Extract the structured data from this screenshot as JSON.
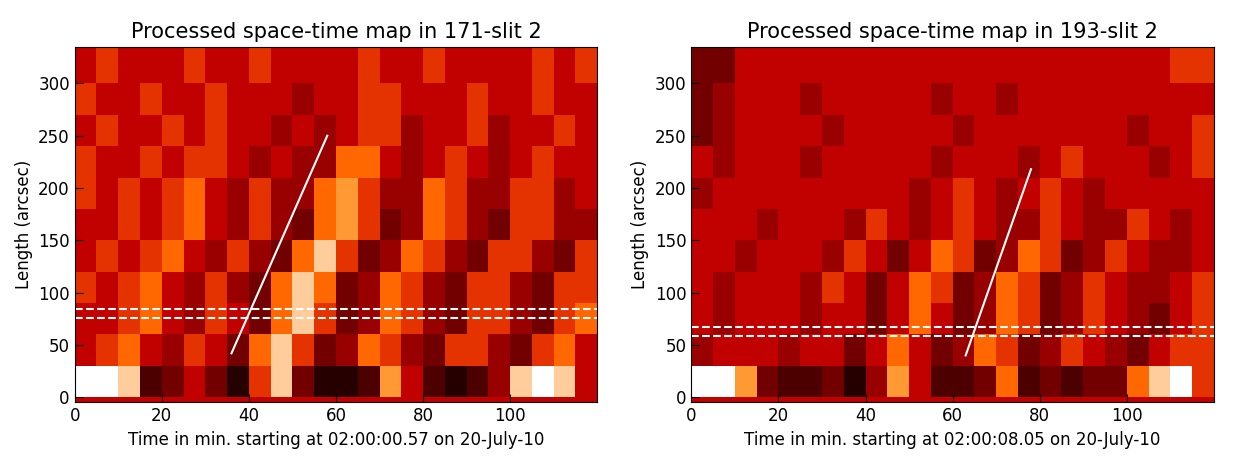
{
  "chart_data": [
    {
      "type": "heatmap",
      "title": "Processed space-time map in 171-slit 2",
      "x_label": "Time in min. starting at 02:00:00.57 on 20-July-10",
      "y_label": "Length (arcsec)",
      "xlim": [
        0,
        120
      ],
      "ylim": [
        -5,
        335
      ],
      "xticks": [
        0,
        20,
        40,
        60,
        80,
        100
      ],
      "yticks": [
        0,
        50,
        100,
        150,
        200,
        250,
        300
      ],
      "zlim": [
        0,
        10
      ],
      "x_edges": [
        0,
        5,
        10,
        15,
        20,
        25,
        30,
        35,
        40,
        45,
        50,
        55,
        60,
        65,
        70,
        75,
        80,
        85,
        90,
        95,
        100,
        105,
        110,
        115,
        120
      ],
      "y_edges": [
        0,
        30,
        60,
        90,
        120,
        150,
        180,
        210,
        240,
        270,
        300,
        335
      ],
      "cells": [
        [
          10,
          10,
          9,
          2,
          3,
          5,
          3,
          1,
          6,
          9,
          3,
          1,
          1,
          2,
          8,
          5,
          2,
          1,
          2,
          4,
          9,
          10,
          9,
          5
        ],
        [
          5,
          6,
          7,
          5,
          4,
          6,
          5,
          3,
          7,
          9,
          6,
          3,
          4,
          7,
          6,
          4,
          3,
          6,
          6,
          4,
          3,
          6,
          7,
          5
        ],
        [
          5,
          5,
          6,
          7,
          5,
          4,
          6,
          5,
          3,
          7,
          9,
          6,
          3,
          4,
          7,
          6,
          4,
          3,
          6,
          6,
          4,
          3,
          6,
          7
        ],
        [
          6,
          5,
          6,
          7,
          5,
          4,
          6,
          4,
          3,
          7,
          9,
          7,
          3,
          4,
          7,
          6,
          4,
          3,
          6,
          6,
          4,
          3,
          6,
          6
        ],
        [
          5,
          6,
          5,
          6,
          7,
          5,
          4,
          6,
          4,
          3,
          7,
          9,
          6,
          3,
          4,
          7,
          6,
          4,
          3,
          6,
          6,
          4,
          3,
          6
        ],
        [
          5,
          5,
          6,
          5,
          6,
          7,
          5,
          4,
          6,
          4,
          3,
          7,
          8,
          6,
          3,
          4,
          7,
          6,
          4,
          3,
          6,
          6,
          4,
          4
        ],
        [
          6,
          5,
          6,
          5,
          6,
          7,
          5,
          4,
          6,
          4,
          4,
          7,
          8,
          6,
          4,
          4,
          7,
          6,
          4,
          4,
          6,
          6,
          4,
          5
        ],
        [
          6,
          5,
          5,
          6,
          5,
          6,
          6,
          5,
          4,
          5,
          4,
          4,
          7,
          7,
          5,
          4,
          5,
          6,
          5,
          4,
          5,
          6,
          5,
          5
        ],
        [
          5,
          6,
          5,
          5,
          6,
          5,
          6,
          5,
          5,
          4,
          5,
          4,
          5,
          6,
          6,
          4,
          5,
          5,
          6,
          4,
          5,
          5,
          6,
          5
        ],
        [
          6,
          5,
          5,
          6,
          5,
          5,
          6,
          5,
          5,
          5,
          4,
          5,
          5,
          6,
          6,
          5,
          5,
          5,
          6,
          5,
          5,
          6,
          5,
          5
        ],
        [
          5,
          6,
          5,
          5,
          5,
          6,
          5,
          5,
          6,
          5,
          5,
          5,
          5,
          6,
          5,
          5,
          6,
          5,
          5,
          5,
          5,
          6,
          5,
          6
        ]
      ],
      "lines": [
        {
          "x": [
            36,
            58
          ],
          "y": [
            42,
            250
          ],
          "color": "white",
          "line_style": "solid"
        },
        {
          "x": [
            0,
            120
          ],
          "y": [
            76,
            76
          ],
          "color": "white",
          "line_style": "dashed"
        },
        {
          "x": [
            0,
            120
          ],
          "y": [
            84,
            84
          ],
          "color": "white",
          "line_style": "dashed"
        }
      ]
    },
    {
      "type": "heatmap",
      "title": "Processed space-time map in 193-slit 2",
      "x_label": "Time in min. starting at 02:00:08.05 on 20-July-10",
      "y_label": "Length (arcsec)",
      "xlim": [
        0,
        120
      ],
      "ylim": [
        -5,
        335
      ],
      "xticks": [
        0,
        20,
        40,
        60,
        80,
        100
      ],
      "yticks": [
        0,
        50,
        100,
        150,
        200,
        250,
        300
      ],
      "zlim": [
        0,
        10
      ],
      "x_edges": [
        0,
        5,
        10,
        15,
        20,
        25,
        30,
        35,
        40,
        45,
        50,
        55,
        60,
        65,
        70,
        75,
        80,
        85,
        90,
        95,
        100,
        105,
        110,
        115,
        120
      ],
      "y_edges": [
        0,
        30,
        60,
        90,
        120,
        150,
        180,
        210,
        240,
        270,
        300,
        335
      ],
      "cells": [
        [
          10,
          10,
          8,
          3,
          2,
          2,
          3,
          1,
          4,
          8,
          5,
          2,
          2,
          3,
          7,
          2,
          3,
          2,
          3,
          3,
          7,
          9,
          10,
          6
        ],
        [
          4,
          5,
          5,
          5,
          4,
          5,
          5,
          3,
          5,
          7,
          5,
          3,
          4,
          7,
          6,
          3,
          4,
          6,
          5,
          4,
          3,
          5,
          6,
          6
        ],
        [
          5,
          4,
          5,
          5,
          5,
          4,
          5,
          5,
          3,
          5,
          7,
          5,
          3,
          4,
          7,
          6,
          3,
          4,
          6,
          5,
          4,
          3,
          5,
          6
        ],
        [
          5,
          4,
          5,
          5,
          5,
          4,
          6,
          5,
          3,
          5,
          7,
          6,
          3,
          4,
          7,
          6,
          3,
          4,
          6,
          5,
          4,
          4,
          5,
          6
        ],
        [
          5,
          5,
          4,
          5,
          5,
          5,
          4,
          6,
          5,
          3,
          5,
          7,
          6,
          3,
          4,
          7,
          6,
          3,
          4,
          6,
          5,
          4,
          4,
          5
        ],
        [
          5,
          5,
          5,
          4,
          5,
          5,
          5,
          4,
          6,
          5,
          4,
          5,
          6,
          5,
          4,
          4,
          6,
          5,
          4,
          4,
          6,
          5,
          4,
          5
        ],
        [
          4,
          5,
          5,
          5,
          5,
          5,
          5,
          5,
          5,
          5,
          4,
          5,
          6,
          5,
          4,
          5,
          6,
          5,
          4,
          5,
          5,
          5,
          5,
          5
        ],
        [
          5,
          4,
          5,
          5,
          5,
          4,
          5,
          5,
          5,
          5,
          5,
          4,
          5,
          5,
          5,
          4,
          5,
          6,
          5,
          5,
          5,
          4,
          5,
          6
        ],
        [
          3,
          4,
          5,
          5,
          5,
          5,
          4,
          5,
          5,
          5,
          5,
          5,
          4,
          5,
          5,
          5,
          5,
          5,
          5,
          5,
          4,
          5,
          5,
          6
        ],
        [
          3,
          4,
          5,
          5,
          5,
          4,
          5,
          5,
          5,
          5,
          5,
          4,
          5,
          5,
          4,
          5,
          5,
          5,
          5,
          5,
          5,
          5,
          5,
          5
        ],
        [
          3,
          3,
          5,
          5,
          5,
          5,
          5,
          5,
          5,
          5,
          5,
          5,
          5,
          5,
          5,
          5,
          5,
          5,
          5,
          5,
          5,
          5,
          6,
          6
        ]
      ],
      "lines": [
        {
          "x": [
            63,
            78
          ],
          "y": [
            40,
            218
          ],
          "color": "white",
          "line_style": "solid"
        },
        {
          "x": [
            0,
            120
          ],
          "y": [
            59,
            59
          ],
          "color": "white",
          "line_style": "dashed"
        },
        {
          "x": [
            0,
            120
          ],
          "y": [
            67,
            67
          ],
          "color": "white",
          "line_style": "dashed"
        }
      ]
    }
  ]
}
